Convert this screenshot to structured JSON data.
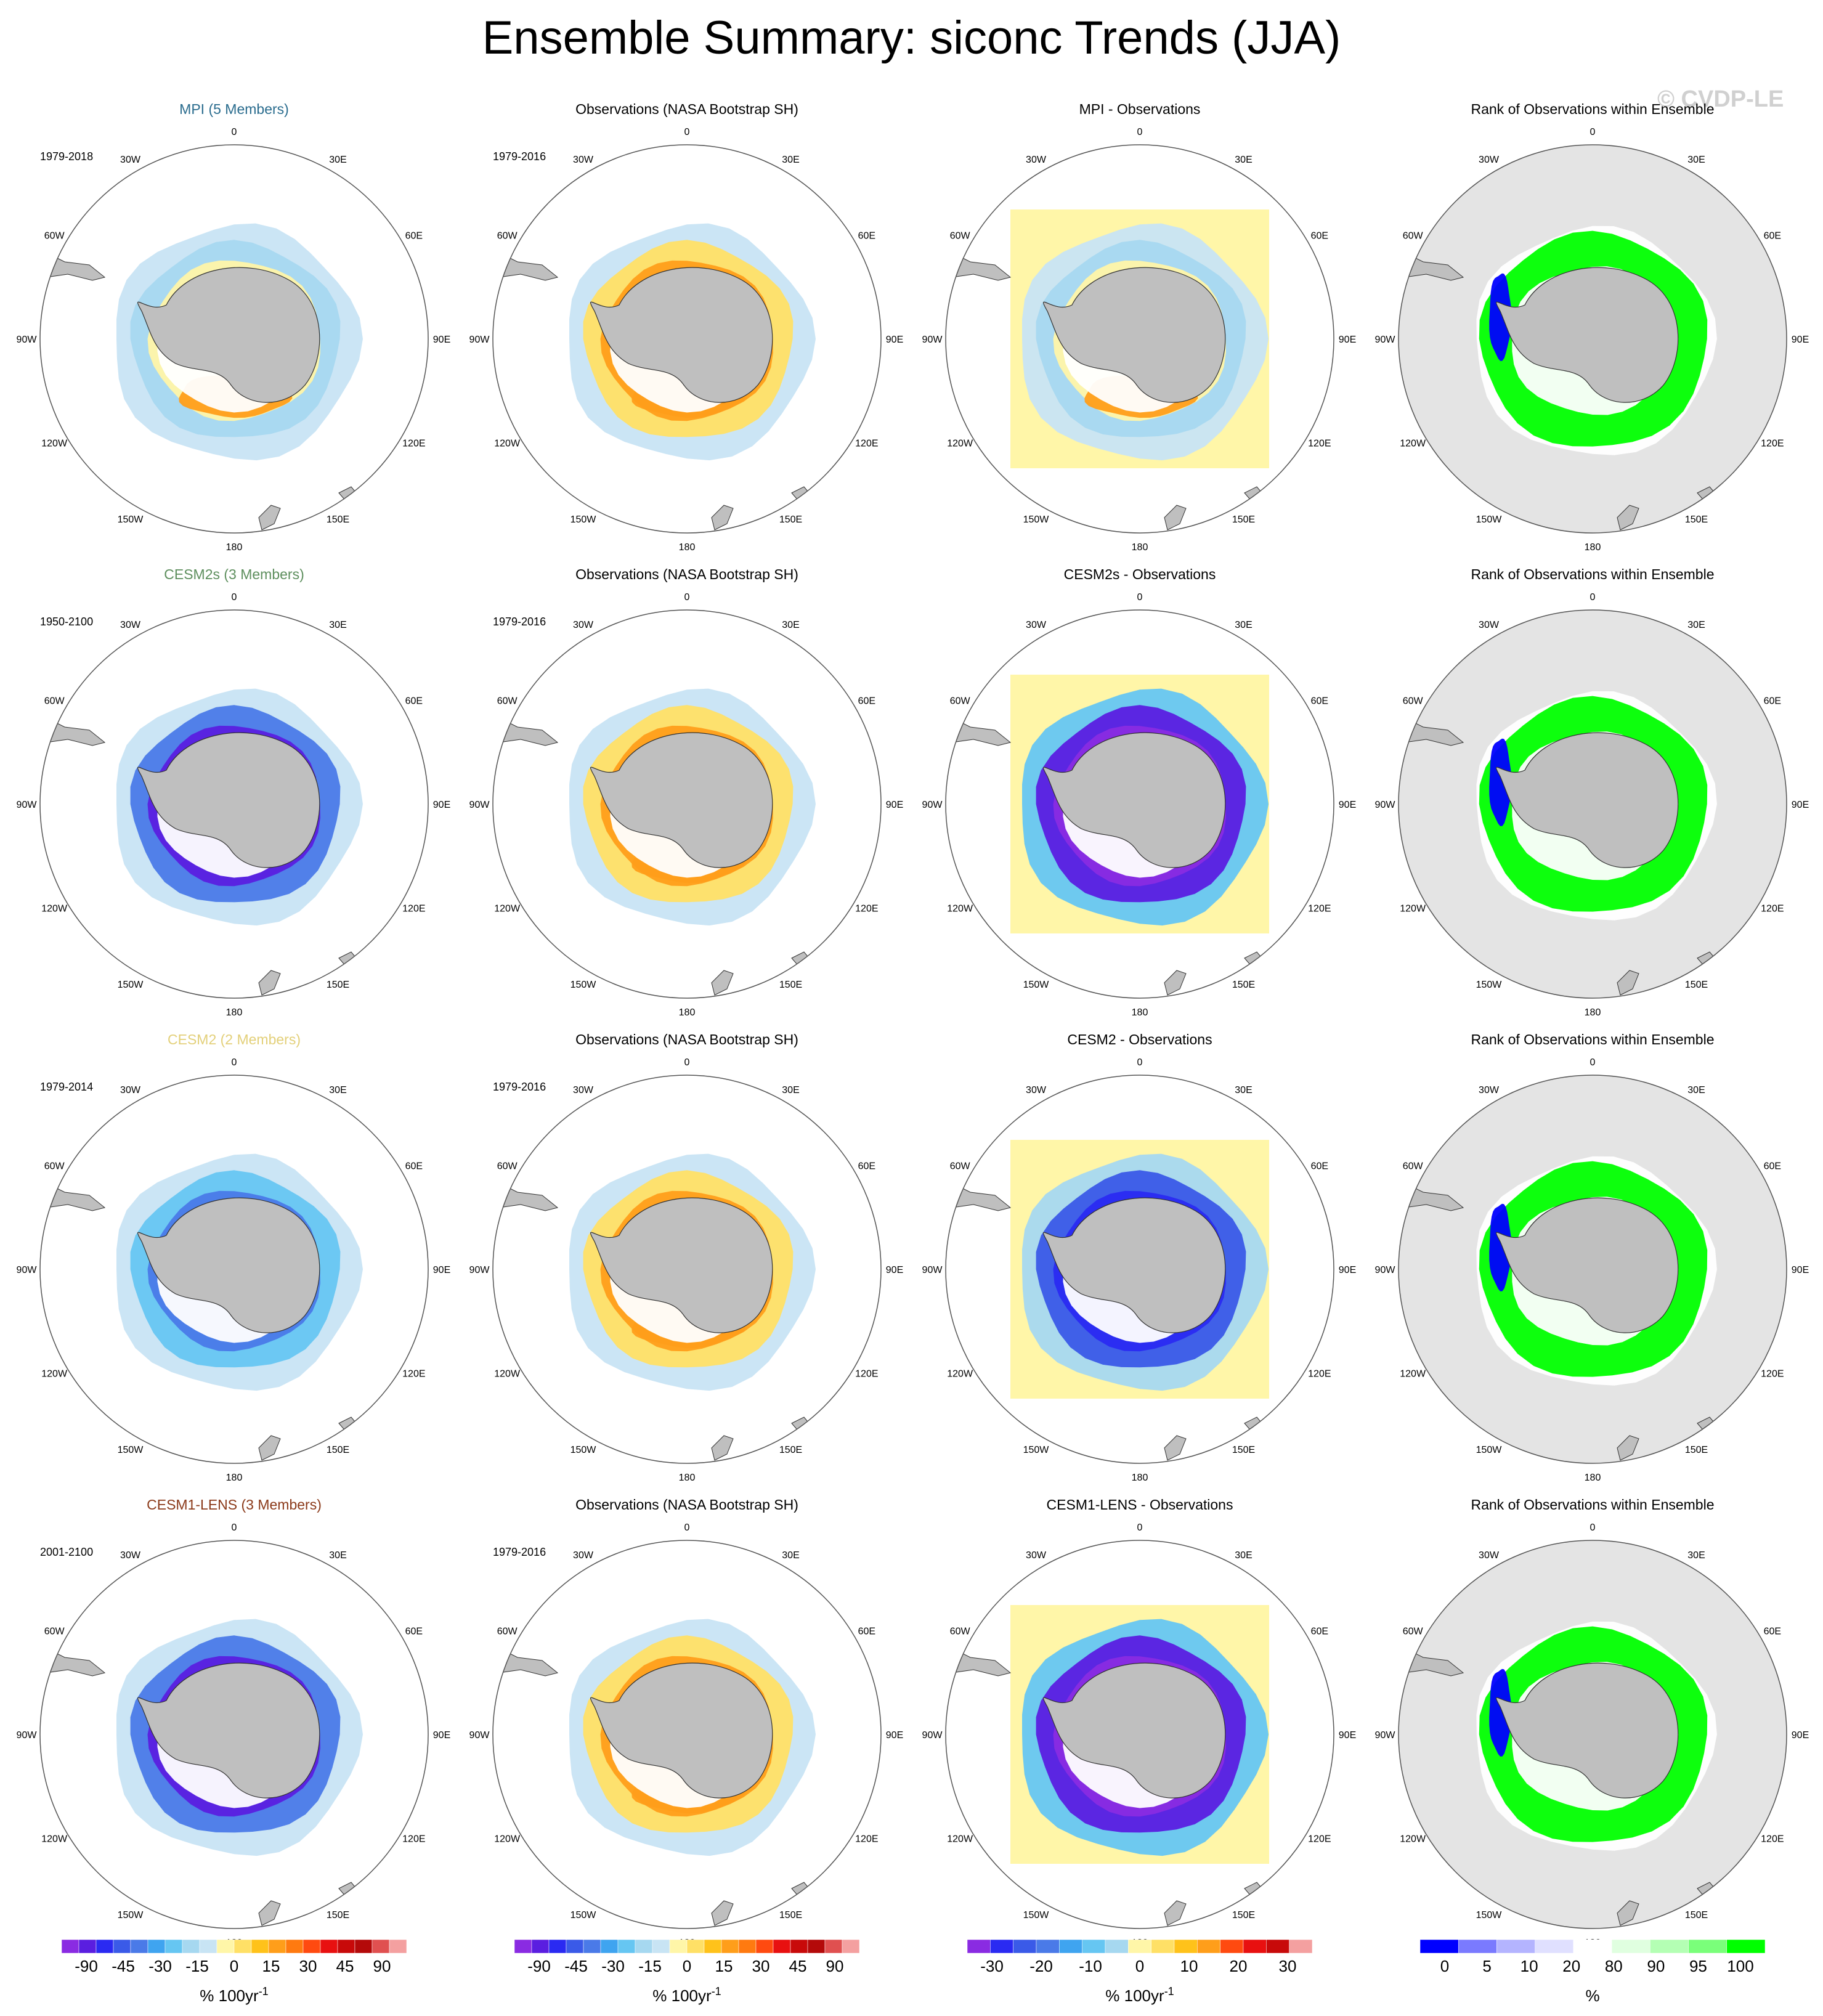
{
  "title": "Ensemble Summary: siconc Trends (JJA)",
  "watermark": "© CVDP-LE",
  "colors": {
    "model_titles": {
      "MPI": "#2a6c8e",
      "CESM2s": "#5e8f5e",
      "CESM2": "#e3d07a",
      "CESM1-LENS": "#8b3a1a"
    },
    "land": "#bfbfbf",
    "rank_background": "#e4e4e4",
    "rank_green": "#00ff00",
    "rank_blue": "#0000ff"
  },
  "longitude_labels": [
    "0",
    "30E",
    "60E",
    "90E",
    "120E",
    "150E",
    "180",
    "150W",
    "120W",
    "90W",
    "60W",
    "30W"
  ],
  "chart_data": [
    {
      "type": "heatmap",
      "map": "south-polar-stereographic",
      "rows": [
        {
          "model": "MPI",
          "model_title": "MPI (5 Members)",
          "model_years": "1979-2018",
          "obs_title": "Observations (NASA Bootstrap SH)",
          "obs_years": "1979-2016",
          "diff_title": "MPI - Observations",
          "rank_title": "Rank of Observations within Ensemble",
          "model_pattern": "mixed",
          "diff_pattern": "mixed"
        },
        {
          "model": "CESM2s",
          "model_title": "CESM2s (3 Members)",
          "model_years": "1950-2100",
          "obs_title": "Observations (NASA Bootstrap SH)",
          "obs_years": "1979-2016",
          "diff_title": "CESM2s - Observations",
          "rank_title": "Rank of Observations within Ensemble",
          "model_pattern": "strong-decline",
          "diff_pattern": "strong-negative"
        },
        {
          "model": "CESM2",
          "model_title": "CESM2 (2 Members)",
          "model_years": "1979-2014",
          "obs_title": "Observations (NASA Bootstrap SH)",
          "obs_years": "1979-2016",
          "diff_title": "CESM2 - Observations",
          "rank_title": "Rank of Observations within Ensemble",
          "model_pattern": "moderate-decline",
          "diff_pattern": "negative-ring"
        },
        {
          "model": "CESM1-LENS",
          "model_title": "CESM1-LENS (3 Members)",
          "model_years": "2001-2100",
          "obs_title": "Observations (NASA Bootstrap SH)",
          "obs_years": "1979-2016",
          "diff_title": "CESM1-LENS - Observations",
          "rank_title": "Rank of Observations within Ensemble",
          "model_pattern": "strong-decline",
          "diff_pattern": "strong-negative"
        }
      ]
    }
  ],
  "colorbars": [
    {
      "id": "trend",
      "tick_labels": [
        "-90",
        "-45",
        "-30",
        "-15",
        "0",
        "15",
        "30",
        "45",
        "90"
      ],
      "unit_label": "% 100yr",
      "unit_superscript": "-1",
      "colors": [
        "#8a2be2",
        "#5a1ee0",
        "#2a2af2",
        "#3a5ae8",
        "#4a7ae8",
        "#3fa4f0",
        "#66c6f2",
        "#a6d8f0",
        "#c8e4f4",
        "#fff6a8",
        "#ffe066",
        "#ffc21a",
        "#ff9e1a",
        "#ff7a10",
        "#ff4a10",
        "#e81010",
        "#c80a0a",
        "#b40a0a",
        "#e05050",
        "#f4a0a0"
      ]
    },
    {
      "id": "trend-obs",
      "tick_labels": [
        "-90",
        "-45",
        "-30",
        "-15",
        "0",
        "15",
        "30",
        "45",
        "90"
      ],
      "unit_label": "% 100yr",
      "unit_superscript": "-1",
      "colors": [
        "#8a2be2",
        "#5a1ee0",
        "#2a2af2",
        "#3a5ae8",
        "#4a7ae8",
        "#3fa4f0",
        "#66c6f2",
        "#a6d8f0",
        "#c8e4f4",
        "#fff6a8",
        "#ffe066",
        "#ffc21a",
        "#ff9e1a",
        "#ff7a10",
        "#ff4a10",
        "#e81010",
        "#c80a0a",
        "#b40a0a",
        "#e05050",
        "#f4a0a0"
      ]
    },
    {
      "id": "difference",
      "tick_labels": [
        "-30",
        "-20",
        "-10",
        "0",
        "10",
        "20",
        "30"
      ],
      "unit_label": "% 100yr",
      "unit_superscript": "-1",
      "colors": [
        "#8a2be2",
        "#2a2af2",
        "#3a5ae8",
        "#4a7ae8",
        "#3fa4f0",
        "#66c6f2",
        "#a6d8f0",
        "#fff6a8",
        "#ffe066",
        "#ffc21a",
        "#ff9e1a",
        "#ff4a10",
        "#e81010",
        "#c80a0a",
        "#f4a0a0"
      ]
    },
    {
      "id": "rank",
      "tick_labels": [
        "0",
        "5",
        "10",
        "20",
        "80",
        "90",
        "95",
        "100"
      ],
      "unit_label": "%",
      "colors": [
        "#0000ff",
        "#7a7aff",
        "#b4b4ff",
        "#e0e0ff",
        "#ffffff",
        "#e0ffe0",
        "#b4ffb4",
        "#7aff7a",
        "#00ff00"
      ]
    }
  ]
}
